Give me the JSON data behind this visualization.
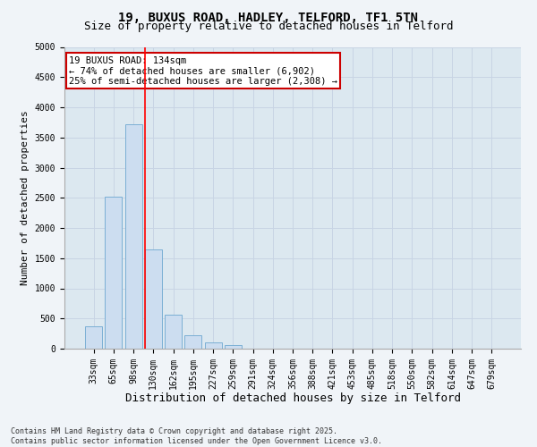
{
  "title_line1": "19, BUXUS ROAD, HADLEY, TELFORD, TF1 5TN",
  "title_line2": "Size of property relative to detached houses in Telford",
  "xlabel": "Distribution of detached houses by size in Telford",
  "ylabel": "Number of detached properties",
  "categories": [
    "33sqm",
    "65sqm",
    "98sqm",
    "130sqm",
    "162sqm",
    "195sqm",
    "227sqm",
    "259sqm",
    "291sqm",
    "324sqm",
    "356sqm",
    "388sqm",
    "421sqm",
    "453sqm",
    "485sqm",
    "518sqm",
    "550sqm",
    "582sqm",
    "614sqm",
    "647sqm",
    "679sqm"
  ],
  "values": [
    370,
    2520,
    3720,
    1640,
    570,
    220,
    100,
    55,
    0,
    0,
    0,
    0,
    0,
    0,
    0,
    0,
    0,
    0,
    0,
    0,
    0
  ],
  "bar_color": "#ccddf0",
  "bar_edge_color": "#7bafd4",
  "property_line_index": 3,
  "annotation_text": "19 BUXUS ROAD: 134sqm\n← 74% of detached houses are smaller (6,902)\n25% of semi-detached houses are larger (2,308) →",
  "annotation_box_facecolor": "#ffffff",
  "annotation_box_edgecolor": "#cc0000",
  "ylim": [
    0,
    5000
  ],
  "yticks": [
    0,
    500,
    1000,
    1500,
    2000,
    2500,
    3000,
    3500,
    4000,
    4500,
    5000
  ],
  "grid_color": "#c8d4e4",
  "plot_bg_color": "#dce8f0",
  "fig_bg_color": "#f0f4f8",
  "footer_line1": "Contains HM Land Registry data © Crown copyright and database right 2025.",
  "footer_line2": "Contains public sector information licensed under the Open Government Licence v3.0.",
  "title1_fontsize": 10,
  "title2_fontsize": 9,
  "tick_fontsize": 7,
  "ylabel_fontsize": 8,
  "xlabel_fontsize": 9,
  "annot_fontsize": 7.5,
  "footer_fontsize": 6
}
